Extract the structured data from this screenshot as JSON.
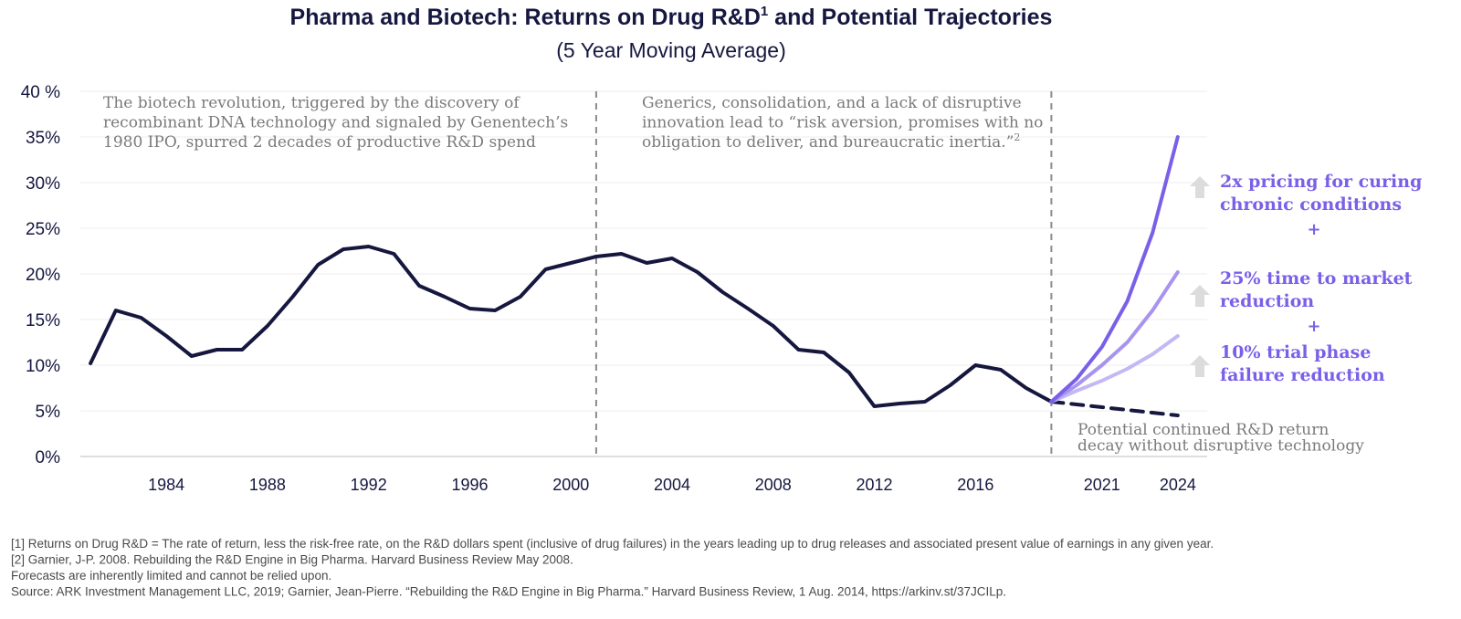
{
  "chart_data": {
    "type": "line",
    "title": "Pharma and Biotech: Returns on Drug R&D",
    "title_superscript": "1",
    "title_suffix": " and Potential Trajectories",
    "subtitle": "(5 Year Moving Average)",
    "y_ticks": [
      "0%",
      "5%",
      "10%",
      "15%",
      "20%",
      "25%",
      "30%",
      "35%",
      "40 %"
    ],
    "x_ticks": [
      "1984",
      "1988",
      "1992",
      "1996",
      "2000",
      "2004",
      "2008",
      "2012",
      "2016",
      "2021",
      "2024"
    ],
    "ylim": [
      0,
      40
    ],
    "grid": true,
    "colors": {
      "historical": "#15173f",
      "decay": "#15173f",
      "scenario_high": "#7a60e8",
      "scenario_mid": "#a894ef",
      "scenario_low": "#c4b8f4",
      "divider": "#8c8c8c",
      "arrow": "#dcdcdc",
      "label": "#7a60e8"
    },
    "historical": {
      "x": [
        1981,
        1982,
        1983,
        1984,
        1985,
        1986,
        1987,
        1988,
        1989,
        1990,
        1991,
        1992,
        1993,
        1994,
        1995,
        1996,
        1997,
        1998,
        1999,
        2000,
        2001,
        2002,
        2003,
        2004,
        2005,
        2006,
        2007,
        2008,
        2009,
        2010,
        2011,
        2012,
        2013,
        2014,
        2015,
        2016,
        2017,
        2018,
        2019
      ],
      "y": [
        10.2,
        16.0,
        15.2,
        13.2,
        11.0,
        11.7,
        11.7,
        14.3,
        17.5,
        21.0,
        22.7,
        23.0,
        22.2,
        18.7,
        17.5,
        16.2,
        16.0,
        17.5,
        20.5,
        21.2,
        21.9,
        22.2,
        21.2,
        21.7,
        20.2,
        18.0,
        16.2,
        14.3,
        11.7,
        11.4,
        9.2,
        5.5,
        5.8,
        6.0,
        7.8,
        10.0,
        9.5,
        7.5,
        6.0
      ]
    },
    "series": [
      {
        "x": [
          2019,
          2020,
          2021,
          2022,
          2023,
          2024
        ],
        "values": [
          6.0,
          8.5,
          12.0,
          17.0,
          24.5,
          35.0
        ]
      },
      {
        "x": [
          2019,
          2020,
          2021,
          2022,
          2023,
          2024
        ],
        "values": [
          6.0,
          7.8,
          10.0,
          12.5,
          16.0,
          20.2
        ]
      },
      {
        "x": [
          2019,
          2020,
          2021,
          2022,
          2023,
          2024
        ],
        "values": [
          6.0,
          7.2,
          8.3,
          9.6,
          11.2,
          13.2
        ]
      },
      {
        "x": [
          2019,
          2024
        ],
        "values": [
          6.0,
          4.5
        ]
      }
    ],
    "dividers": [
      2001,
      2019
    ],
    "annotations": [
      {
        "lines": [
          "The biotech revolution, triggered by the discovery of",
          "recombinant DNA technology and signaled by Genentech’s",
          "1980 IPO, spurred 2 decades of productive R&D spend"
        ]
      },
      {
        "lines": [
          "Generics, consolidation, and a lack of disruptive",
          "innovation lead to “risk aversion, promises with no",
          "obligation to deliver, and bureaucratic inertia.”"
        ],
        "superscript": "2"
      },
      {
        "lines": [
          "Potential continued R&D return",
          "decay without disruptive technology"
        ]
      }
    ],
    "scenario_labels": [
      {
        "lines": [
          "2x pricing for curing",
          "chronic conditions"
        ]
      },
      {
        "lines": [
          "25% time to market",
          "reduction"
        ]
      },
      {
        "lines": [
          "10% trial phase",
          "failure reduction"
        ]
      }
    ],
    "plus_sign": "+",
    "icons": [
      "up-arrow-icon",
      "up-arrow-icon",
      "up-arrow-icon"
    ]
  },
  "footnotes": [
    "[1] Returns on Drug R&D = The rate of return, less the risk-free rate, on the R&D dollars spent (inclusive of drug failures) in the years leading up to drug releases and associated present value of earnings in any given year.",
    "[2] Garnier, J-P. 2008. Rebuilding the R&D Engine in Big Pharma. Harvard Business Review May 2008.",
    "Forecasts are inherently limited and cannot be relied upon.",
    "Source: ARK Investment Management LLC, 2019; Garnier, Jean-Pierre. “Rebuilding the R&D Engine in Big Pharma.” Harvard Business Review, 1 Aug. 2014, https://arkinv.st/37JCILp."
  ]
}
